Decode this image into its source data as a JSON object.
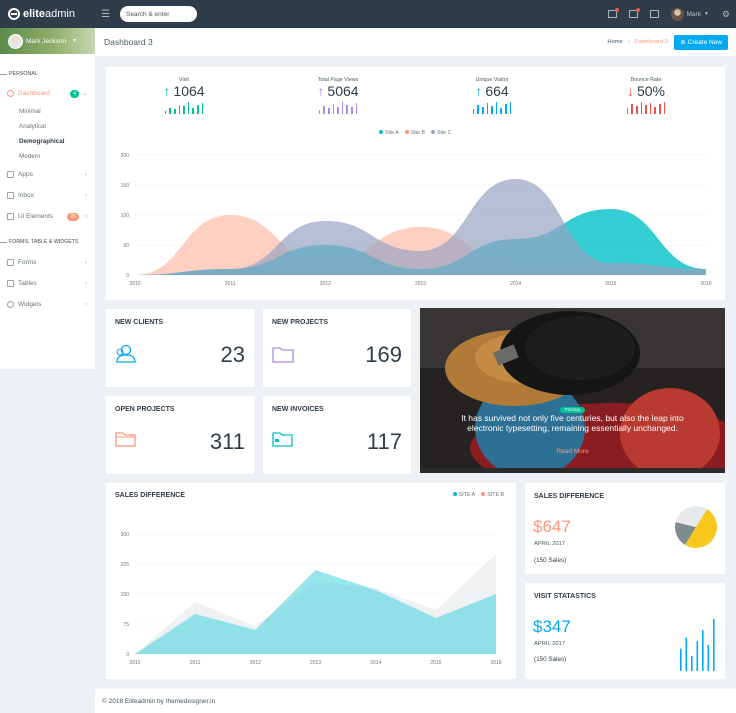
{
  "brand": {
    "bold": "elite",
    "thin": "admin"
  },
  "search": {
    "placeholder": "Search & enter"
  },
  "user": {
    "name": "Mark"
  },
  "profile": {
    "name": "Mark Jeckson"
  },
  "sidebar": {
    "section_personal": "PERSONAL",
    "dashboard": {
      "label": "Dashboard",
      "badge": "4"
    },
    "submenu": [
      "Minimal",
      "Analytical",
      "Demographical",
      "Modern"
    ],
    "apps": "Apps",
    "inbox": "Inbox",
    "ui_elements": {
      "label": "Ui Elements",
      "badge": "25"
    },
    "section_forms": "FORMS, TABLE & WIDGETS",
    "forms": "Forms",
    "tables": "Tables",
    "widgets": "Widgets"
  },
  "header": {
    "title": "Dashboard 3",
    "crumb_home": "Home",
    "crumb_current": "Dashboard 3",
    "create_button": "Create New"
  },
  "stats": [
    {
      "label": "Visit",
      "value": "1064",
      "trend": "up",
      "color": "#00c292",
      "bars": [
        3,
        6,
        5,
        9,
        8,
        12,
        6,
        9,
        11
      ]
    },
    {
      "label": "Total Page Views",
      "value": "5064",
      "trend": "up",
      "color": "#ab8ce4",
      "bars": [
        4,
        8,
        6,
        10,
        7,
        12,
        9,
        7,
        11
      ]
    },
    {
      "label": "Unique Visitor",
      "value": "664",
      "trend": "up",
      "color": "#03a9f3",
      "bars": [
        5,
        9,
        7,
        11,
        8,
        12,
        6,
        10,
        12
      ]
    },
    {
      "label": "Bounce Rate",
      "value": "50%",
      "trend": "down",
      "color": "#ef5350",
      "bars": [
        6,
        10,
        8,
        12,
        9,
        11,
        7,
        10,
        12
      ]
    }
  ],
  "chart_data": [
    {
      "type": "area",
      "title": "",
      "x": [
        "2010",
        "2011",
        "2012",
        "2013",
        "2014",
        "2015",
        "2016"
      ],
      "series": [
        {
          "name": "Site A",
          "color": "#01c0c8",
          "values": [
            0,
            10,
            50,
            10,
            60,
            110,
            10
          ]
        },
        {
          "name": "Site B",
          "color": "#fb9678",
          "values": [
            0,
            100,
            20,
            80,
            20,
            20,
            10
          ]
        },
        {
          "name": "Site C",
          "color": "#99a4c2",
          "values": [
            0,
            10,
            90,
            40,
            160,
            20,
            10
          ]
        }
      ],
      "yticks": [
        0,
        50,
        100,
        150,
        200
      ],
      "ylim": [
        0,
        200
      ]
    },
    {
      "type": "area",
      "title": "SALES DIFFERENCE",
      "x": [
        "2010",
        "2011",
        "2012",
        "2013",
        "2014",
        "2015",
        "2016"
      ],
      "series": [
        {
          "name": "SITE A",
          "color": "#01c0c8",
          "values": [
            0,
            100,
            60,
            210,
            160,
            90,
            150
          ]
        },
        {
          "name": "SITE B",
          "color": "#fb9678",
          "values": [
            0,
            130,
            70,
            180,
            165,
            110,
            250
          ]
        }
      ],
      "yticks": [
        0,
        75,
        150,
        225,
        300
      ],
      "ylim": [
        0,
        300
      ]
    },
    {
      "type": "pie",
      "values": [
        50,
        20,
        30
      ],
      "colors": [
        "#f8c91c",
        "#7f8c8d",
        "#e7eaed"
      ]
    },
    {
      "type": "bar",
      "values": [
        30,
        45,
        20,
        40,
        55,
        35,
        70
      ]
    }
  ],
  "cards": {
    "new_clients": {
      "title": "NEW CLIENTS",
      "value": "23",
      "icon_color": "#03a9f3"
    },
    "new_projects": {
      "title": "NEW PROJECTS",
      "value": "169",
      "icon_color": "#ab8ce4"
    },
    "open_projects": {
      "title": "OPEN PROJECTS",
      "value": "311",
      "icon_color": "#fb9678"
    },
    "new_invoices": {
      "title": "NEW INVOICES",
      "value": "117",
      "icon_color": "#01c0c8"
    }
  },
  "quote": {
    "badge": "Primary",
    "text": "It has survived not only five centuries, but also the leap into electronic typesetting, remaining essentially unchanged.",
    "link": "Read More"
  },
  "sales_card": {
    "title": "SALES DIFFERENCE",
    "amount": "$647",
    "date": "APRIL 2017",
    "sales": "(150 Sales)",
    "color": "#fb9678"
  },
  "visit_card": {
    "title": "VISIT STATASTICS",
    "amount": "$347",
    "date": "APRIL 2017",
    "sales": "(150 Sales)",
    "color": "#03a9f3"
  },
  "footer": "© 2018 Eliteadmin by themedesigner.in"
}
